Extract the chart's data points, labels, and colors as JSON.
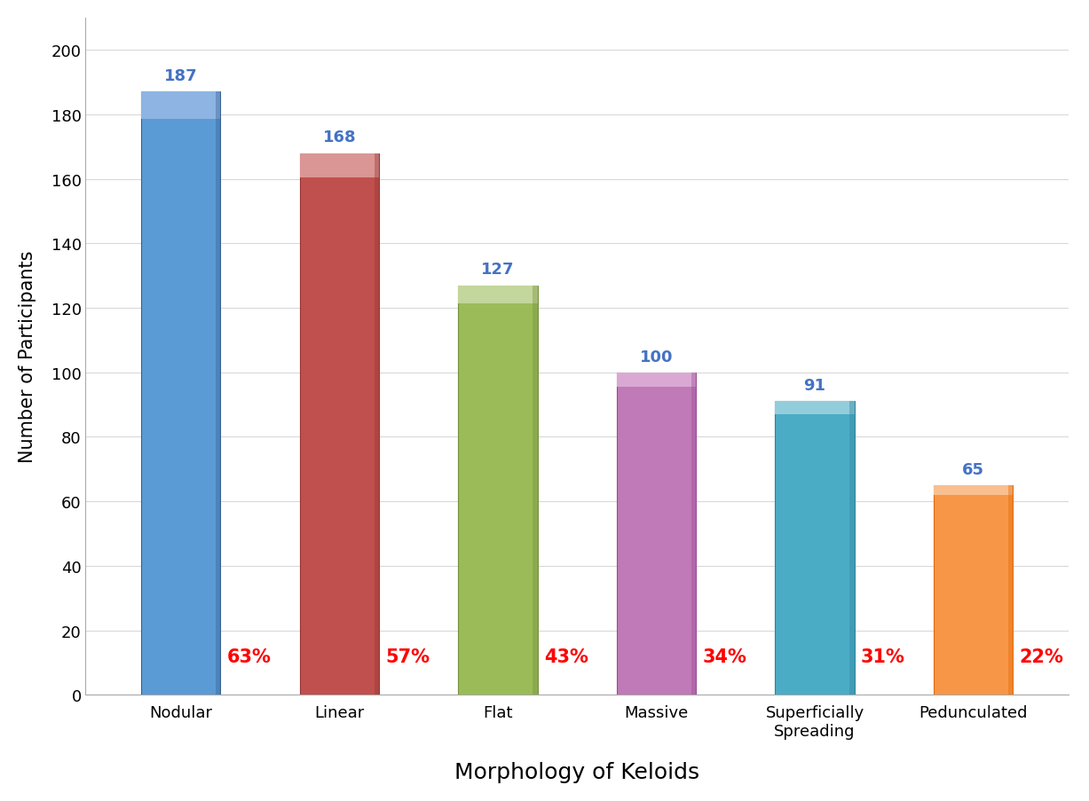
{
  "categories": [
    "Nodular",
    "Linear",
    "Flat",
    "Massive",
    "Superficially\nSpreading",
    "Pedunculated"
  ],
  "values": [
    187,
    168,
    127,
    100,
    91,
    65
  ],
  "percentages": [
    "63%",
    "57%",
    "43%",
    "34%",
    "31%",
    "22%"
  ],
  "bar_colors": [
    "#5B9BD5",
    "#C0504D",
    "#9BBB59",
    "#C07AB8",
    "#4BACC6",
    "#F79646"
  ],
  "bar_top_colors": [
    "#8DB4E2",
    "#D99694",
    "#C3D69B",
    "#D9A9D4",
    "#92CDDC",
    "#FABF8F"
  ],
  "bar_dark_colors": [
    "#376092",
    "#963634",
    "#76923C",
    "#9C4B96",
    "#31849B",
    "#E26B0A"
  ],
  "value_label_color": "#4472C4",
  "pct_label_color": "#FF0000",
  "xlabel": "Morphology of Keloids",
  "ylabel": "Number of Participants",
  "ylim": [
    0,
    210
  ],
  "yticks": [
    0,
    20,
    40,
    60,
    80,
    100,
    120,
    140,
    160,
    180,
    200
  ],
  "background_color": "#FFFFFF",
  "grid_color": "#D9D9D9",
  "xlabel_fontsize": 18,
  "ylabel_fontsize": 15,
  "tick_fontsize": 13,
  "value_label_fontsize": 13,
  "pct_label_fontsize": 15,
  "bar_width": 0.5
}
